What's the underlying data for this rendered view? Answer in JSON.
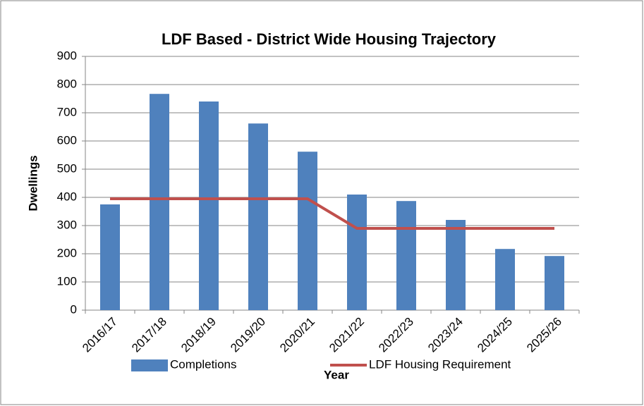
{
  "chart_data": {
    "type": "bar",
    "title": "LDF Based - District Wide Housing Trajectory",
    "x_label": "Year",
    "y_label": "Dwellings",
    "categories": [
      "2016/17",
      "2017/18",
      "2018/19",
      "2019/20",
      "2020/21",
      "2021/22",
      "2022/23",
      "2023/24",
      "2024/25",
      "2025/26"
    ],
    "series": [
      {
        "name": "Completions",
        "type": "bar",
        "color": "#4f81bd",
        "values": [
          375,
          767,
          740,
          662,
          562,
          410,
          387,
          320,
          217,
          192
        ]
      },
      {
        "name": "LDF Housing Requirement",
        "type": "line",
        "color": "#c0504d",
        "values": [
          395,
          395,
          395,
          395,
          395,
          290,
          290,
          290,
          290,
          290
        ]
      }
    ],
    "ylim": [
      0,
      900
    ],
    "yticks": [
      0,
      100,
      200,
      300,
      400,
      500,
      600,
      700,
      800,
      900
    ],
    "grid": true,
    "legend": "bottom"
  }
}
